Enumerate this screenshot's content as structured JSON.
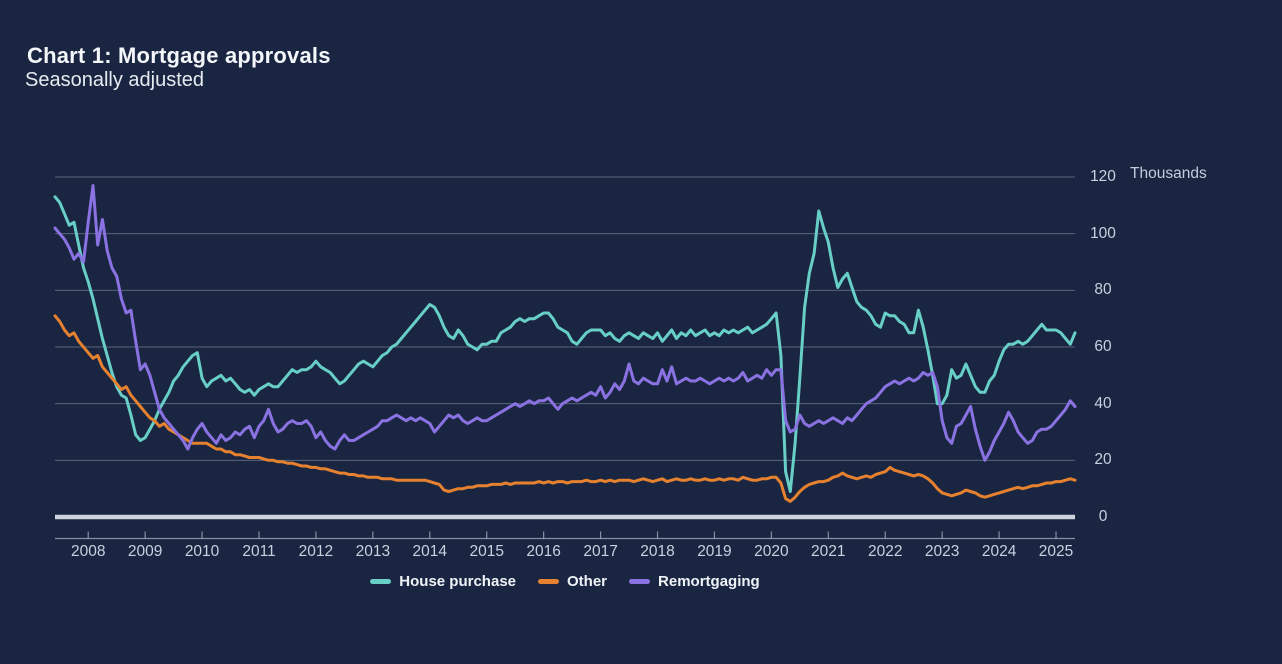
{
  "header": {
    "title": "Chart 1: Mortgage approvals",
    "subtitle": "Seasonally adjusted"
  },
  "chart_data": {
    "type": "line",
    "title": "Chart 1: Mortgage approvals",
    "subtitle": "Seasonally adjusted",
    "y_unit_label": "Thousands",
    "x_start": "2007-06",
    "x_end": "2025-05",
    "x_frequency": "monthly",
    "x_tick_years": [
      2008,
      2009,
      2010,
      2011,
      2012,
      2013,
      2014,
      2015,
      2016,
      2017,
      2018,
      2019,
      2020,
      2021,
      2022,
      2023,
      2024,
      2025
    ],
    "ylim": [
      0,
      120
    ],
    "y_ticks": [
      0,
      20,
      40,
      60,
      80,
      100,
      120
    ],
    "grid": "horizontal",
    "legend_position": "bottom-center",
    "series": [
      {
        "name": "House purchase",
        "color": "#68cfc6",
        "values": [
          113,
          111,
          107,
          103,
          104,
          96,
          88,
          83,
          77,
          70,
          63,
          57,
          51,
          46,
          43,
          42,
          36,
          29,
          27,
          28,
          31,
          34,
          38,
          41,
          44,
          48,
          50,
          53,
          55,
          57,
          58,
          49,
          46,
          48,
          49,
          50,
          48,
          49,
          47,
          45,
          44,
          45,
          43,
          45,
          46,
          47,
          46,
          46,
          48,
          50,
          52,
          51,
          52,
          52,
          53,
          55,
          53,
          52,
          51,
          49,
          47,
          48,
          50,
          52,
          54,
          55,
          54,
          53,
          55,
          57,
          58,
          60,
          61,
          63,
          65,
          67,
          69,
          71,
          73,
          75,
          74,
          71,
          67,
          64,
          63,
          66,
          64,
          61,
          60,
          59,
          61,
          61,
          62,
          62,
          65,
          66,
          67,
          69,
          70,
          69,
          70,
          70,
          71,
          72,
          72,
          70,
          67,
          66,
          65,
          62,
          61,
          63,
          65,
          66,
          66,
          66,
          64,
          65,
          63,
          62,
          64,
          65,
          64,
          63,
          65,
          64,
          63,
          65,
          62,
          64,
          66,
          63,
          65,
          64,
          66,
          64,
          65,
          66,
          64,
          65,
          64,
          66,
          65,
          66,
          65,
          66,
          67,
          65,
          66,
          67,
          68,
          70,
          72,
          57,
          16,
          9,
          26,
          49,
          74,
          86,
          93,
          108,
          102,
          97,
          88,
          81,
          84,
          86,
          81,
          76,
          74,
          73,
          71,
          68,
          67,
          72,
          71,
          71,
          69,
          68,
          65,
          65,
          73,
          67,
          59,
          50,
          40,
          40,
          43,
          52,
          49,
          50,
          54,
          50,
          46,
          44,
          44,
          48,
          50,
          55,
          59,
          61,
          61,
          62,
          61,
          62,
          64,
          66,
          68,
          66,
          66,
          66,
          65,
          63,
          61,
          65
        ]
      },
      {
        "name": "Other",
        "color": "#e5812f",
        "values": [
          71,
          69,
          66,
          64,
          65,
          62,
          60,
          58,
          56,
          57,
          53,
          51,
          49,
          47,
          45,
          46,
          43,
          41,
          39,
          37,
          35,
          34,
          32,
          33,
          31,
          30,
          29,
          28,
          27,
          26,
          26,
          26,
          26,
          25,
          24,
          24,
          23,
          23,
          22,
          22,
          21.5,
          21,
          21,
          21,
          20.5,
          20,
          20,
          19.5,
          19.5,
          19,
          19,
          18.5,
          18,
          18,
          17.5,
          17.5,
          17,
          17,
          16.5,
          16,
          15.5,
          15.5,
          15,
          15,
          14.5,
          14.5,
          14,
          14,
          14,
          13.5,
          13.5,
          13.5,
          13,
          13,
          13,
          13,
          13,
          13,
          13,
          12.5,
          12,
          11.5,
          9.5,
          9,
          9.5,
          10,
          10,
          10.5,
          10.5,
          11,
          11,
          11,
          11.5,
          11.5,
          11.5,
          12,
          11.5,
          12,
          12,
          12,
          12,
          12,
          12.5,
          12,
          12.5,
          12,
          12.5,
          12.5,
          12,
          12.5,
          12.5,
          12.5,
          13,
          12.5,
          12.5,
          13,
          12.5,
          13,
          12.5,
          13,
          13,
          13,
          12.5,
          13,
          13.5,
          13,
          12.5,
          13,
          13.5,
          12.5,
          13,
          13.5,
          13,
          13,
          13.5,
          13,
          13,
          13.5,
          13,
          13,
          13.5,
          13,
          13.5,
          13.5,
          13,
          14,
          13.5,
          13,
          13,
          13.5,
          13.5,
          14,
          14,
          12,
          6.5,
          5.5,
          7,
          9,
          10.5,
          11.5,
          12,
          12.5,
          12.5,
          13,
          14,
          14.5,
          15.5,
          14.5,
          14,
          13.5,
          14,
          14.5,
          14,
          15,
          15.5,
          16,
          17.5,
          16.5,
          16,
          15.5,
          15,
          14.5,
          15,
          14.5,
          13.5,
          12,
          10,
          8.5,
          8,
          7.5,
          8,
          8.5,
          9.5,
          9,
          8.5,
          7.5,
          7,
          7.5,
          8,
          8.5,
          9,
          9.5,
          10,
          10.5,
          10,
          10.5,
          11,
          11,
          11.5,
          12,
          12,
          12.5,
          12.5,
          13,
          13.5,
          13
        ]
      },
      {
        "name": "Remortgaging",
        "color": "#8b72e3",
        "values": [
          102,
          100,
          98,
          95,
          91,
          93,
          90,
          104,
          117,
          96,
          105,
          94,
          88,
          85,
          77,
          72,
          73,
          62,
          52,
          54,
          50,
          44,
          38,
          35,
          33,
          31,
          29,
          27,
          24,
          28,
          31,
          33,
          30,
          28,
          26,
          29,
          27,
          28,
          30,
          29,
          31,
          32,
          28,
          32,
          34,
          38,
          33,
          30,
          31,
          33,
          34,
          33,
          33,
          34,
          32,
          28,
          30,
          27,
          25,
          24,
          27,
          29,
          27,
          27,
          28,
          29,
          30,
          31,
          32,
          34,
          34,
          35,
          36,
          35,
          34,
          35,
          34,
          35,
          34,
          33,
          30,
          32,
          34,
          36,
          35,
          36,
          34,
          33,
          34,
          35,
          34,
          34,
          35,
          36,
          37,
          38,
          39,
          40,
          39,
          40,
          41,
          40,
          41,
          41,
          42,
          40,
          38,
          40,
          41,
          42,
          41,
          42,
          43,
          44,
          43,
          46,
          42,
          44,
          47,
          45,
          48,
          54,
          48,
          47,
          49,
          48,
          47,
          47,
          52,
          48,
          53,
          47,
          48,
          49,
          48,
          48,
          49,
          48,
          47,
          48,
          49,
          48,
          49,
          48,
          49,
          51,
          48,
          49,
          50,
          49,
          52,
          50,
          52,
          52,
          34,
          30,
          31,
          36,
          33,
          32,
          33,
          34,
          33,
          34,
          35,
          34,
          33,
          35,
          34,
          36,
          38,
          40,
          41,
          42,
          44,
          46,
          47,
          48,
          47,
          48,
          49,
          48,
          49,
          51,
          50,
          51,
          46,
          34,
          28,
          26,
          32,
          33,
          36,
          39,
          31,
          25,
          20,
          23,
          27,
          30,
          33,
          37,
          34,
          30,
          28,
          26,
          27,
          30,
          31,
          31,
          32,
          34,
          36,
          38,
          41,
          39
        ]
      }
    ]
  },
  "axis_style": {
    "grid_color": "rgba(190,200,216,0.38)",
    "baseline_color": "#ccd3dd",
    "axis_line_color": "rgba(190,200,216,0.65)",
    "tick_label_color": "#c9d0de"
  }
}
